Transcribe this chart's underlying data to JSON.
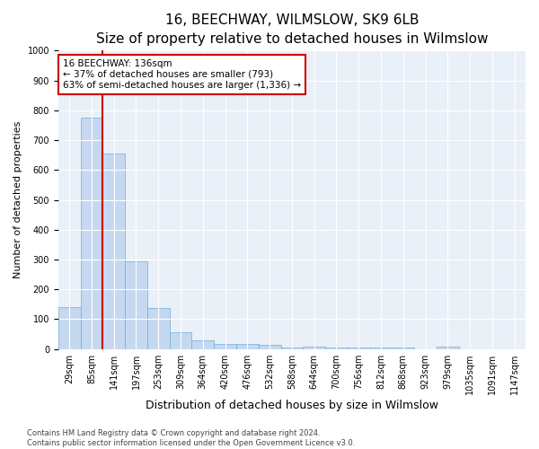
{
  "title": "16, BEECHWAY, WILMSLOW, SK9 6LB",
  "subtitle": "Size of property relative to detached houses in Wilmslow",
  "xlabel": "Distribution of detached houses by size in Wilmslow",
  "ylabel": "Number of detached properties",
  "categories": [
    "29sqm",
    "85sqm",
    "141sqm",
    "197sqm",
    "253sqm",
    "309sqm",
    "364sqm",
    "420sqm",
    "476sqm",
    "532sqm",
    "588sqm",
    "644sqm",
    "700sqm",
    "756sqm",
    "812sqm",
    "868sqm",
    "923sqm",
    "979sqm",
    "1035sqm",
    "1091sqm",
    "1147sqm"
  ],
  "values": [
    140,
    775,
    655,
    295,
    138,
    57,
    28,
    18,
    18,
    14,
    5,
    8,
    5,
    6,
    5,
    5,
    0,
    8,
    0,
    0,
    0
  ],
  "bar_color": "#c5d8f0",
  "bar_edge_color": "#6aaed6",
  "highlight_line_color": "#cc0000",
  "annotation_line1": "16 BEECHWAY: 136sqm",
  "annotation_line2": "← 37% of detached houses are smaller (793)",
  "annotation_line3": "63% of semi-detached houses are larger (1,336) →",
  "annotation_box_color": "#cc0000",
  "ylim": [
    0,
    1000
  ],
  "yticks": [
    0,
    100,
    200,
    300,
    400,
    500,
    600,
    700,
    800,
    900,
    1000
  ],
  "background_color": "#eaf0f8",
  "footer_line1": "Contains HM Land Registry data © Crown copyright and database right 2024.",
  "footer_line2": "Contains public sector information licensed under the Open Government Licence v3.0.",
  "title_fontsize": 11,
  "subtitle_fontsize": 9.5,
  "xlabel_fontsize": 9,
  "ylabel_fontsize": 8,
  "tick_fontsize": 7,
  "annotation_fontsize": 7.5,
  "footer_fontsize": 6
}
